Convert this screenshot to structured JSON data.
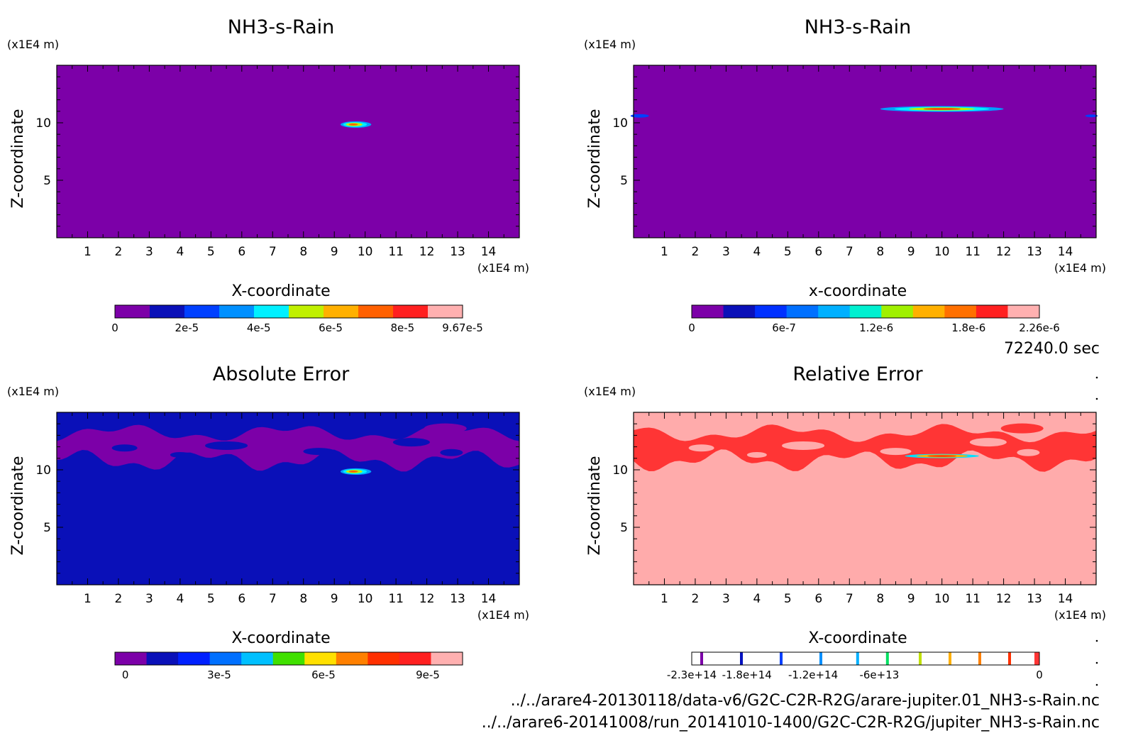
{
  "time_label": "72240.0 sec",
  "files": [
    "../../arare4-20130118/data-v6/G2C-C2R-R2G/arare-jupiter.01_NH3-s-Rain.nc",
    "../../arare6-20141008/run_20141010-1400/G2C-C2R-R2G/jupiter_NH3-s-Rain.nc"
  ],
  "chart_data": [
    {
      "type": "heatmap",
      "title": "NH3-s-Rain",
      "xlabel": "X-coordinate",
      "ylabel": "Z-coordinate",
      "x_unit": "(x1E4 m)",
      "y_unit": "(x1E4 m)",
      "xlim": [
        0,
        15
      ],
      "ylim": [
        0,
        15
      ],
      "x_ticks": [
        "1",
        "2",
        "3",
        "4",
        "5",
        "6",
        "7",
        "8",
        "9",
        "10",
        "11",
        "12",
        "13",
        "14"
      ],
      "y_ticks": [
        "5",
        "10"
      ],
      "background_color": "#7c00a8",
      "colorbar": {
        "colors": [
          "#7c00a8",
          "#0a10b8",
          "#0040ff",
          "#0090ff",
          "#00f0ff",
          "#c0f000",
          "#ffb000",
          "#ff6000",
          "#ff2020",
          "#ffb0b0"
        ],
        "tick_labels": [
          "0",
          "2e-5",
          "4e-5",
          "6e-5",
          "8e-5",
          "9.67e-5"
        ],
        "tick_positions": [
          0,
          2,
          4,
          6,
          8,
          9.67
        ],
        "range": [
          0,
          9.67
        ]
      },
      "features": [
        {
          "shape": "blob",
          "x_center": 9.7,
          "z_center": 9.85,
          "half_width": 0.5,
          "half_height": 0.28,
          "colors": [
            "#00a0ff",
            "#00f0ff",
            "#c0f000",
            "#ff6000"
          ]
        }
      ]
    },
    {
      "type": "heatmap",
      "title": "NH3-s-Rain",
      "xlabel": "x-coordinate",
      "ylabel": "Z-coordinate",
      "x_unit": "(x1E4 m)",
      "y_unit": "(x1E4 m)",
      "xlim": [
        0,
        15
      ],
      "ylim": [
        0,
        15
      ],
      "x_ticks": [
        "1",
        "2",
        "3",
        "4",
        "5",
        "6",
        "7",
        "8",
        "9",
        "10",
        "11",
        "12",
        "13",
        "14"
      ],
      "y_ticks": [
        "5",
        "10"
      ],
      "background_color": "#7c00a8",
      "colorbar": {
        "colors": [
          "#7c00a8",
          "#0a10b8",
          "#0030ff",
          "#0070ff",
          "#00b0ff",
          "#00f0d0",
          "#a0f000",
          "#ffb000",
          "#ff7000",
          "#ff2020",
          "#ffb0b0"
        ],
        "tick_labels": [
          "0",
          "6e-7",
          "1.2e-6",
          "1.8e-6",
          "2.26e-6"
        ],
        "tick_positions": [
          0,
          6,
          12,
          18,
          22.6
        ],
        "range": [
          0,
          22.6
        ]
      },
      "features": [
        {
          "shape": "band",
          "x_center": 10.0,
          "z_center": 11.2,
          "half_width": 2.0,
          "half_height": 0.25,
          "colors": [
            "#00a0ff",
            "#00f0ff",
            "#c0f000",
            "#ff3000"
          ]
        },
        {
          "shape": "blob",
          "x_center": 0.2,
          "z_center": 10.6,
          "half_width": 0.3,
          "half_height": 0.15,
          "colors": [
            "#0040ff"
          ]
        },
        {
          "shape": "blob",
          "x_center": 14.85,
          "z_center": 10.6,
          "half_width": 0.2,
          "half_height": 0.12,
          "colors": [
            "#0040ff"
          ]
        }
      ]
    },
    {
      "type": "heatmap",
      "title": "Absolute Error",
      "xlabel": "X-coordinate",
      "ylabel": "Z-coordinate",
      "x_unit": "(x1E4 m)",
      "y_unit": "(x1E4 m)",
      "xlim": [
        0,
        15
      ],
      "ylim": [
        0,
        15
      ],
      "x_ticks": [
        "1",
        "2",
        "3",
        "4",
        "5",
        "6",
        "7",
        "8",
        "9",
        "10",
        "11",
        "12",
        "13",
        "14"
      ],
      "y_ticks": [
        "5",
        "10"
      ],
      "background_color": "#0a10b8",
      "band_color": "#7c00a8",
      "colorbar": {
        "colors": [
          "#7c00a8",
          "#0a10b8",
          "#0020ff",
          "#0070ff",
          "#00c0ff",
          "#40e000",
          "#ffe000",
          "#ff8000",
          "#ff3000",
          "#ff2020",
          "#ffb0b0"
        ],
        "tick_labels": [
          "0",
          "3e-5",
          "6e-5",
          "9e-5"
        ],
        "tick_positions": [
          0.3,
          3,
          6,
          9
        ],
        "range": [
          0,
          10
        ]
      },
      "features": [
        {
          "shape": "blob",
          "x_center": 9.7,
          "z_center": 9.85,
          "half_width": 0.5,
          "half_height": 0.28,
          "colors": [
            "#00a0ff",
            "#00f0ff",
            "#c0f000",
            "#ff6000"
          ]
        }
      ]
    },
    {
      "type": "heatmap",
      "title": "Relative Error",
      "xlabel": "X-coordinate",
      "ylabel": "Z-coordinate",
      "x_unit": "(x1E4 m)",
      "y_unit": "(x1E4 m)",
      "xlim": [
        0,
        15
      ],
      "ylim": [
        0,
        15
      ],
      "x_ticks": [
        "1",
        "2",
        "3",
        "4",
        "5",
        "6",
        "7",
        "8",
        "9",
        "10",
        "11",
        "12",
        "13",
        "14"
      ],
      "y_ticks": [
        "5",
        "10"
      ],
      "background_color": "#ffabab",
      "band_color": "#ff3535",
      "colorbar": {
        "style": "lines",
        "line_colors": [
          "#7c00a8",
          "#0010c0",
          "#0040ff",
          "#0090ff",
          "#00b0ff",
          "#00e060",
          "#c0e000",
          "#ffb000",
          "#ff8000",
          "#ff3000"
        ],
        "line_positions": [
          -22,
          -18,
          -14,
          -10,
          -6.3,
          -3.3,
          0,
          3,
          6,
          9
        ],
        "end_color": "#ff3535",
        "tick_labels": [
          "-2.3e+14",
          "-1.8e+14",
          "-1.2e+14",
          "-6e+13",
          "0"
        ],
        "tick_positions": [
          -23,
          -18,
          -12,
          -6,
          0
        ],
        "range": [
          -23,
          0
        ],
        "line_range": [
          -23,
          12
        ]
      },
      "features": [
        {
          "shape": "band",
          "x_center": 10.0,
          "z_center": 11.2,
          "half_width": 1.2,
          "half_height": 0.18,
          "colors": [
            "#00e0ff",
            "#ffb000",
            "#ff3000"
          ]
        }
      ]
    }
  ]
}
